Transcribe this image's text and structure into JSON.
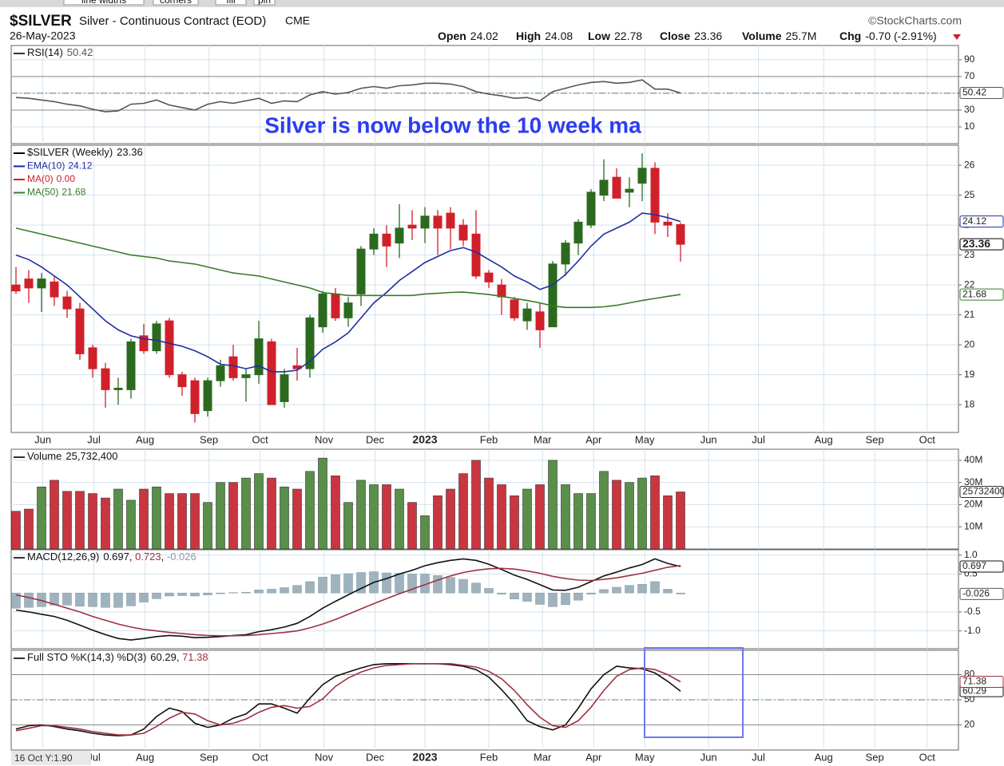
{
  "toolbar": [
    "line widths",
    "corners",
    "fill",
    "pin"
  ],
  "header": {
    "symbol": "$SILVER",
    "description": "Silver - Continuous Contract (EOD)",
    "exchange": "CME",
    "date": "26-May-2023",
    "source": "©StockCharts.com",
    "quote": [
      {
        "label": "Open",
        "value": 24.02
      },
      {
        "label": "High",
        "value": 24.08
      },
      {
        "label": "Low",
        "value": 22.78
      },
      {
        "label": "Close",
        "value": 23.36
      },
      {
        "label": "Volume",
        "value": "25.7M"
      },
      {
        "label": "Chg",
        "value": "-0.70 (-2.91%)"
      }
    ]
  },
  "annotation": "Silver is now below the 10 week ma",
  "cursor_readout": "16 Oct Y:1.90",
  "x_axis": {
    "xlim": [
      -0.375,
      73.75
    ],
    "xticks": [
      {
        "value": 2.1,
        "label": "Jun"
      },
      {
        "value": 6.1,
        "label": "Jul"
      },
      {
        "value": 10.1,
        "label": "Aug"
      },
      {
        "value": 15.1,
        "label": "Sep"
      },
      {
        "value": 19.1,
        "label": "Oct"
      },
      {
        "value": 24.1,
        "label": "Nov"
      },
      {
        "value": 28.1,
        "label": "Dec"
      },
      {
        "value": 32,
        "label": "2023"
      },
      {
        "value": 37,
        "label": "Feb"
      },
      {
        "value": 41.2,
        "label": "Mar"
      },
      {
        "value": 45.2,
        "label": "Apr"
      },
      {
        "value": 49.2,
        "label": "May"
      },
      {
        "value": 54.2,
        "label": "Jun"
      },
      {
        "value": 58.1,
        "label": "Jul"
      },
      {
        "value": 63.2,
        "label": "Aug"
      },
      {
        "value": 67.2,
        "label": "Sep"
      },
      {
        "value": 71.3,
        "label": "Oct"
      }
    ]
  },
  "chart_data": [
    {
      "type": "line",
      "label": "RSI(14)",
      "ylim": [
        -10,
        107
      ],
      "yticks": [
        10,
        30,
        {
          "value": 50.42,
          "label": "50.42"
        },
        70,
        90
      ],
      "ref_lines": [
        70,
        30
      ],
      "dashed_line": 50,
      "series": [
        {
          "color": "#555555",
          "tag": true,
          "values": [
            45,
            44,
            42,
            40,
            37,
            35,
            31,
            28,
            29,
            37,
            38,
            42,
            36,
            33,
            30,
            37,
            40,
            38,
            41,
            44,
            38,
            41,
            40,
            48,
            52,
            49,
            51,
            56,
            58,
            56,
            59,
            60,
            62,
            62,
            61,
            58,
            52,
            49,
            47,
            44,
            45,
            41,
            52,
            56,
            60,
            63,
            64,
            62,
            63,
            66,
            55,
            55,
            50.42
          ]
        }
      ]
    },
    {
      "type": "candlestick",
      "ylim": [
        17.07,
        26.67
      ],
      "yticks": [
        18,
        19,
        20,
        21,
        22,
        23,
        24,
        25,
        26
      ],
      "up_color": "#2b6a1e",
      "down_color": "#d0202a",
      "candles": {
        "name": "$SILVER (Weekly)",
        "open": [
          22.0,
          22.2,
          21.9,
          22.1,
          21.6,
          21.2,
          19.9,
          19.2,
          18.5,
          18.5,
          20.3,
          19.8,
          20.8,
          19.0,
          18.8,
          17.8,
          18.8,
          19.6,
          18.9,
          19.0,
          20.1,
          18.1,
          19.3,
          19.2,
          20.6,
          21.7,
          20.9,
          21.7,
          23.2,
          23.7,
          23.4,
          24.0,
          23.9,
          24.3,
          24.4,
          24.0,
          23.7,
          22.4,
          22.0,
          21.5,
          20.8,
          21.1,
          20.6,
          22.7,
          23.4,
          24.0,
          25.0,
          25.6,
          25.1,
          25.4,
          25.9,
          24.1,
          24.02
        ],
        "high": [
          22.6,
          22.5,
          22.4,
          22.3,
          21.8,
          21.4,
          20.0,
          19.4,
          18.9,
          20.2,
          20.7,
          20.8,
          20.9,
          19.1,
          18.9,
          18.9,
          19.5,
          20.0,
          19.2,
          20.8,
          20.2,
          19.2,
          19.9,
          21.0,
          21.8,
          21.9,
          21.6,
          23.3,
          23.9,
          24.0,
          24.7,
          24.5,
          24.6,
          24.5,
          24.6,
          24.2,
          24.5,
          22.5,
          22.2,
          21.6,
          21.4,
          21.4,
          22.8,
          23.5,
          24.2,
          25.2,
          26.2,
          25.9,
          25.6,
          26.4,
          26.1,
          24.4,
          24.08
        ],
        "low": [
          21.7,
          21.4,
          21.1,
          21.3,
          20.9,
          19.5,
          18.9,
          17.9,
          18.0,
          18.2,
          19.7,
          19.7,
          18.9,
          18.3,
          17.4,
          17.6,
          18.6,
          18.8,
          18.1,
          18.7,
          18.0,
          17.9,
          18.8,
          18.9,
          20.4,
          20.8,
          20.6,
          21.3,
          23.0,
          22.6,
          22.9,
          23.5,
          23.4,
          23.0,
          23.2,
          23.3,
          22.2,
          21.9,
          21.0,
          20.8,
          20.5,
          19.9,
          20.6,
          22.3,
          23.0,
          23.9,
          24.8,
          24.9,
          24.6,
          24.8,
          23.7,
          23.6,
          22.78
        ],
        "close": [
          21.8,
          21.9,
          22.2,
          21.6,
          21.2,
          19.7,
          19.2,
          18.5,
          18.55,
          20.1,
          19.8,
          20.7,
          19.0,
          18.6,
          17.7,
          18.8,
          19.3,
          18.9,
          19.0,
          20.2,
          18.0,
          19.0,
          19.2,
          20.9,
          21.7,
          20.9,
          21.4,
          23.2,
          23.7,
          23.3,
          23.9,
          23.9,
          24.3,
          23.9,
          23.9,
          23.5,
          22.3,
          22.1,
          21.6,
          20.9,
          21.2,
          20.5,
          22.7,
          23.4,
          24.1,
          25.1,
          25.5,
          24.9,
          25.2,
          25.9,
          24.1,
          24.0,
          23.36
        ]
      },
      "series": [
        {
          "name": "EMA(10)",
          "color": "#1f2fa0",
          "tag": true,
          "values": [
            23.0,
            22.85,
            22.6,
            22.3,
            22.0,
            21.6,
            21.2,
            20.8,
            20.5,
            20.3,
            20.2,
            20.15,
            20.05,
            19.95,
            19.8,
            19.6,
            19.35,
            19.3,
            19.2,
            19.3,
            19.1,
            19.1,
            19.15,
            19.45,
            19.85,
            20.1,
            20.4,
            20.9,
            21.4,
            21.75,
            22.15,
            22.45,
            22.75,
            22.95,
            23.15,
            23.25,
            23.1,
            22.85,
            22.6,
            22.3,
            22.1,
            21.85,
            22.0,
            22.35,
            22.8,
            23.3,
            23.7,
            23.9,
            24.1,
            24.4,
            24.35,
            24.25,
            24.12
          ]
        },
        {
          "name": "MA(50)",
          "color": "#3a7a2a",
          "tag": true,
          "values": [
            23.9,
            23.8,
            23.7,
            23.6,
            23.5,
            23.4,
            23.3,
            23.2,
            23.1,
            23.0,
            22.95,
            22.9,
            22.8,
            22.75,
            22.7,
            22.6,
            22.5,
            22.4,
            22.35,
            22.3,
            22.2,
            22.1,
            22.0,
            21.9,
            21.75,
            21.7,
            21.65,
            21.65,
            21.65,
            21.65,
            21.65,
            21.65,
            21.7,
            21.72,
            21.75,
            21.76,
            21.72,
            21.68,
            21.62,
            21.55,
            21.48,
            21.4,
            21.3,
            21.25,
            21.25,
            21.25,
            21.27,
            21.32,
            21.4,
            21.48,
            21.55,
            21.62,
            21.68
          ]
        }
      ],
      "legend_extra": [
        {
          "name": "MA(0)",
          "color": "#d0202a",
          "value": {
            "value": 0,
            "label": "0.00"
          }
        }
      ]
    },
    {
      "type": "bar",
      "label": "Volume",
      "ylim": [
        0,
        45000000
      ],
      "yticks": [
        {
          "value": 10000000,
          "label": "10M"
        },
        {
          "value": 20000000,
          "label": "20M"
        },
        {
          "value": 30000000,
          "label": "30M"
        },
        {
          "value": 40000000,
          "label": "40M"
        }
      ],
      "up_color": "#5a8f4a",
      "down_color": "#c93640",
      "series": [
        {
          "color": "#333333",
          "tag": true,
          "legend_label": "25,732,400",
          "values": [
            17000000,
            18000000,
            28000000,
            31000000,
            26000000,
            26000000,
            25000000,
            23000000,
            27000000,
            22000000,
            27000000,
            28000000,
            25000000,
            25000000,
            25000000,
            21000000,
            30000000,
            30000000,
            32000000,
            34000000,
            32000000,
            28000000,
            27000000,
            35000000,
            41000000,
            33000000,
            21000000,
            31000000,
            29000000,
            29000000,
            27000000,
            21000000,
            15000000,
            24000000,
            27000000,
            34000000,
            40000000,
            32000000,
            29000000,
            24000000,
            27000000,
            29000000,
            40000000,
            29000000,
            25000000,
            25000000,
            35000000,
            31000000,
            30000000,
            32000000,
            33000000,
            24000000,
            25732400
          ]
        }
      ]
    },
    {
      "type": "macd",
      "label": "MACD(12,26,9)",
      "ylim": [
        -1.47,
        1.14
      ],
      "yticks": [
        {
          "value": 1,
          "label": "1.0"
        },
        0.5,
        -0.5,
        {
          "value": -1,
          "label": "-1.0"
        }
      ],
      "series": [
        {
          "color": "#111111",
          "tag": true,
          "values": [
            -0.45,
            -0.5,
            -0.56,
            -0.62,
            -0.72,
            -0.85,
            -0.98,
            -1.1,
            -1.2,
            -1.24,
            -1.2,
            -1.15,
            -1.12,
            -1.14,
            -1.18,
            -1.17,
            -1.15,
            -1.12,
            -1.1,
            -1.02,
            -0.97,
            -0.9,
            -0.8,
            -0.62,
            -0.4,
            -0.22,
            -0.05,
            0.12,
            0.28,
            0.38,
            0.5,
            0.6,
            0.72,
            0.8,
            0.86,
            0.9,
            0.86,
            0.76,
            0.62,
            0.47,
            0.36,
            0.22,
            0.08,
            0.07,
            0.15,
            0.3,
            0.45,
            0.55,
            0.66,
            0.75,
            0.9,
            0.78,
            0.697
          ]
        },
        {
          "color": "#a03040",
          "tag": false,
          "values": [
            -0.05,
            -0.12,
            -0.2,
            -0.3,
            -0.4,
            -0.5,
            -0.62,
            -0.72,
            -0.82,
            -0.9,
            -0.96,
            -1.0,
            -1.04,
            -1.07,
            -1.1,
            -1.12,
            -1.13,
            -1.13,
            -1.12,
            -1.1,
            -1.07,
            -1.04,
            -1.0,
            -0.92,
            -0.82,
            -0.7,
            -0.56,
            -0.42,
            -0.28,
            -0.15,
            -0.02,
            0.1,
            0.22,
            0.34,
            0.45,
            0.54,
            0.6,
            0.64,
            0.65,
            0.63,
            0.58,
            0.52,
            0.44,
            0.38,
            0.34,
            0.33,
            0.36,
            0.4,
            0.46,
            0.52,
            0.6,
            0.68,
            0.723
          ]
        }
      ],
      "histogram": {
        "color": "#9fb3be",
        "tag": true,
        "values": [
          -0.4,
          -0.38,
          -0.36,
          -0.32,
          -0.32,
          -0.35,
          -0.36,
          -0.38,
          -0.38,
          -0.34,
          -0.24,
          -0.15,
          -0.08,
          -0.07,
          -0.08,
          -0.05,
          -0.02,
          0.01,
          0.02,
          0.08,
          0.1,
          0.14,
          0.2,
          0.3,
          0.42,
          0.48,
          0.51,
          0.54,
          0.56,
          0.53,
          0.52,
          0.5,
          0.5,
          0.46,
          0.41,
          0.36,
          0.26,
          0.12,
          -0.03,
          -0.16,
          -0.22,
          -0.3,
          -0.36,
          -0.31,
          -0.19,
          -0.03,
          0.09,
          0.15,
          0.2,
          0.23,
          0.3,
          0.1,
          -0.026
        ]
      }
    },
    {
      "type": "line",
      "label": "Full STO %K(14,3) %D(3)",
      "ylim": [
        -10,
        109
      ],
      "yticks": [
        20,
        50,
        80
      ],
      "ref_lines": [
        80,
        20
      ],
      "dashed_line": 50,
      "series": [
        {
          "color": "#111111",
          "tag": true,
          "values": [
            15,
            19,
            20,
            18,
            15,
            13,
            10,
            8,
            7,
            8,
            15,
            30,
            40,
            36,
            22,
            17,
            20,
            28,
            33,
            45,
            45,
            40,
            34,
            52,
            68,
            78,
            83,
            88,
            92,
            93,
            93,
            93,
            93,
            93,
            92,
            90,
            86,
            77,
            62,
            45,
            25,
            18,
            14,
            20,
            40,
            63,
            80,
            90,
            88,
            87,
            82,
            72,
            60.29
          ]
        },
        {
          "color": "#a03040",
          "tag": true,
          "values": [
            13,
            16,
            19,
            19,
            17,
            15,
            12,
            10,
            8,
            8,
            10,
            18,
            28,
            35,
            33,
            25,
            20,
            22,
            27,
            35,
            41,
            43,
            40,
            42,
            51,
            66,
            76,
            83,
            88,
            91,
            92,
            93,
            93,
            93,
            93,
            91,
            89,
            84,
            75,
            61,
            44,
            29,
            19,
            17,
            25,
            41,
            61,
            78,
            86,
            88,
            86,
            80,
            71.38
          ]
        }
      ]
    }
  ]
}
